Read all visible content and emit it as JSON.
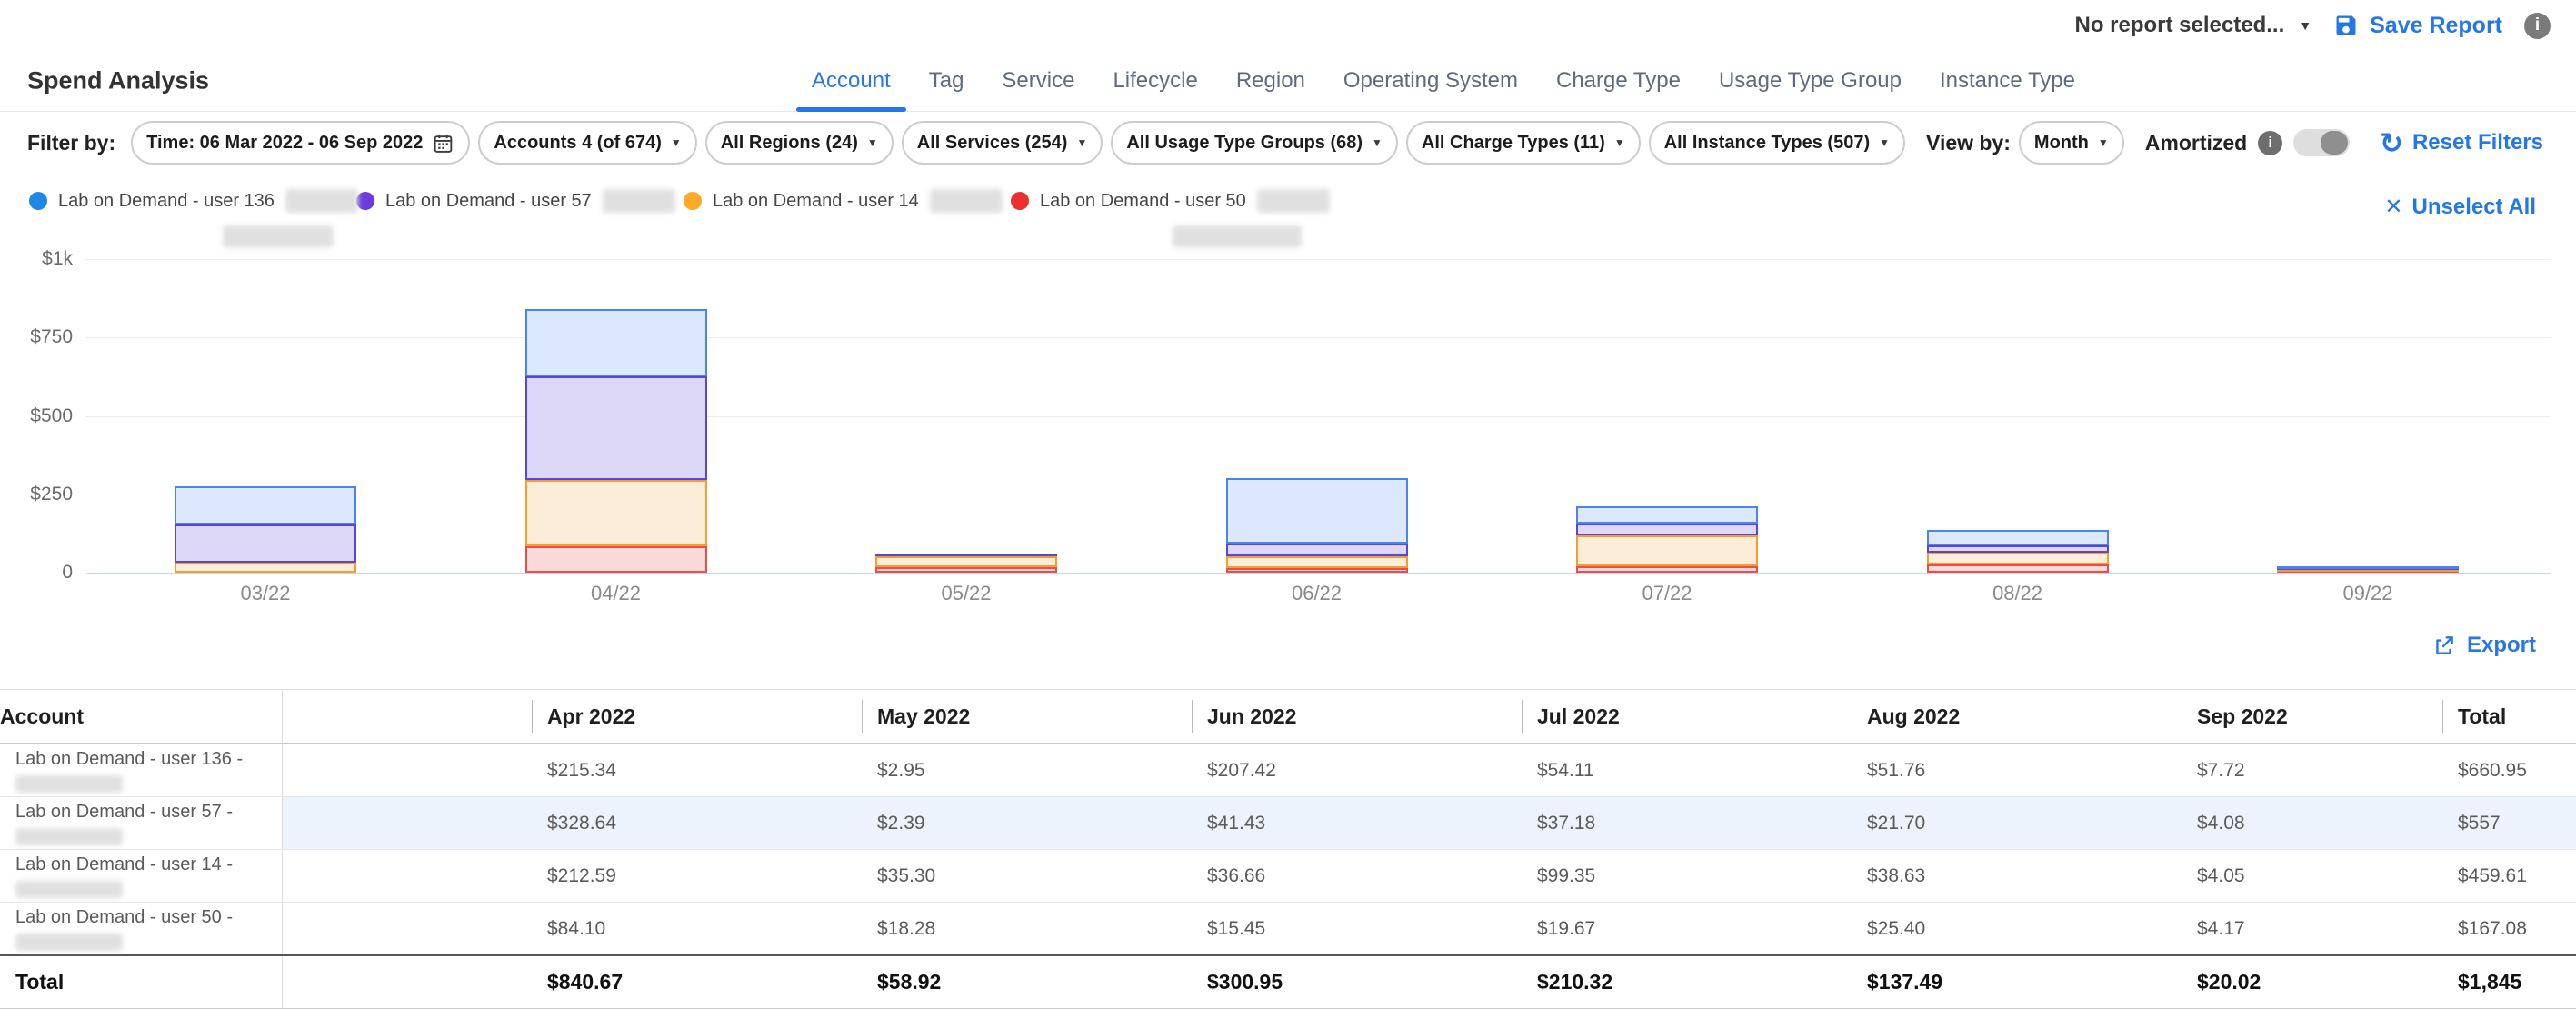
{
  "topbar": {
    "report_selector": "No report selected...",
    "save_report": "Save Report"
  },
  "page": {
    "title": "Spend Analysis"
  },
  "tabs": [
    {
      "label": "Account",
      "active": true
    },
    {
      "label": "Tag",
      "active": false
    },
    {
      "label": "Service",
      "active": false
    },
    {
      "label": "Lifecycle",
      "active": false
    },
    {
      "label": "Region",
      "active": false
    },
    {
      "label": "Operating System",
      "active": false
    },
    {
      "label": "Charge Type",
      "active": false
    },
    {
      "label": "Usage Type Group",
      "active": false
    },
    {
      "label": "Instance Type",
      "active": false
    }
  ],
  "filter_bar": {
    "label": "Filter by:",
    "time_filter": "Time: 06 Mar 2022 - 06 Sep 2022",
    "dropdowns": [
      "Accounts 4 (of 674)",
      "All Regions (24)",
      "All Services (254)",
      "All Usage Type Groups (68)",
      "All Charge Types (11)",
      "All Instance Types (507)"
    ],
    "view_by_label": "View by:",
    "view_by_value": "Month",
    "amortized_label": "Amortized",
    "amortized_enabled": false,
    "reset_label": "Reset Filters"
  },
  "legend": {
    "unselect_all": "Unselect All",
    "items": [
      {
        "label": "Lab on Demand - user 136",
        "color": "#1E88E5"
      },
      {
        "label": "Lab on Demand - user 57",
        "color": "#6A3BDD"
      },
      {
        "label": "Lab on Demand - user 14",
        "color": "#FFA726"
      },
      {
        "label": "Lab on Demand - user 50",
        "color": "#EF2E2E"
      }
    ]
  },
  "chart_data": {
    "type": "bar",
    "stacked": true,
    "categories": [
      "03/22",
      "04/22",
      "05/22",
      "06/22",
      "07/22",
      "08/22",
      "09/22"
    ],
    "series": [
      {
        "name": "Lab on Demand - user 136",
        "dot": "#1E88E5",
        "stroke": "#4A84EE",
        "fill": "#DCE9FC",
        "values": [
          121.7,
          215.34,
          2.95,
          207.42,
          54.11,
          51.76,
          7.72
        ]
      },
      {
        "name": "Lab on Demand - user 57",
        "dot": "#6A3BDD",
        "stroke": "#5B45D8",
        "fill": "#DDD7F8",
        "values": [
          121.6,
          328.64,
          2.39,
          41.43,
          37.18,
          21.7,
          4.08
        ]
      },
      {
        "name": "Lab on Demand - user 14",
        "dot": "#FFA726",
        "stroke": "#F59E2D",
        "fill": "#FCEDD8",
        "values": [
          33.0,
          212.59,
          35.3,
          36.66,
          99.35,
          38.63,
          4.05
        ]
      },
      {
        "name": "Lab on Demand - user 50",
        "dot": "#EF2E2E",
        "stroke": "#EF4B4B",
        "fill": "#FAD9D9",
        "values": [
          0.0,
          84.1,
          18.28,
          15.45,
          19.67,
          25.4,
          4.17
        ]
      }
    ],
    "stack_order_bottom_to_top": [
      "Lab on Demand - user 50",
      "Lab on Demand - user 14",
      "Lab on Demand - user 57",
      "Lab on Demand - user 136"
    ],
    "y_ticks": [
      {
        "label": "$1k",
        "value": 1000
      },
      {
        "label": "$750",
        "value": 750
      },
      {
        "label": "$500",
        "value": 500
      },
      {
        "label": "$250",
        "value": 250
      },
      {
        "label": "0",
        "value": 0
      }
    ],
    "ylim": [
      0,
      1000
    ],
    "legend_position": "top-left",
    "grid": true
  },
  "export_label": "Export",
  "table": {
    "columns": [
      "Account",
      "Apr 2022",
      "May 2022",
      "Jun 2022",
      "Jul 2022",
      "Aug 2022",
      "Sep 2022",
      "Total"
    ],
    "rows": [
      {
        "account": "Lab on Demand - user 136 -",
        "highlighted": false,
        "values": [
          "$215.34",
          "$2.95",
          "$207.42",
          "$54.11",
          "$51.76",
          "$7.72",
          "$660.95"
        ]
      },
      {
        "account": "Lab on Demand - user 57 -",
        "highlighted": true,
        "values": [
          "$328.64",
          "$2.39",
          "$41.43",
          "$37.18",
          "$21.70",
          "$4.08",
          "$557"
        ]
      },
      {
        "account": "Lab on Demand - user 14 -",
        "highlighted": false,
        "values": [
          "$212.59",
          "$35.30",
          "$36.66",
          "$99.35",
          "$38.63",
          "$4.05",
          "$459.61"
        ]
      },
      {
        "account": "Lab on Demand - user 50 -",
        "highlighted": false,
        "values": [
          "$84.10",
          "$18.28",
          "$15.45",
          "$19.67",
          "$25.40",
          "$4.17",
          "$167.08"
        ]
      }
    ],
    "total_row": {
      "label": "Total",
      "values": [
        "$840.67",
        "$58.92",
        "$300.95",
        "$210.32",
        "$137.49",
        "$20.02",
        "$1,845"
      ]
    }
  }
}
